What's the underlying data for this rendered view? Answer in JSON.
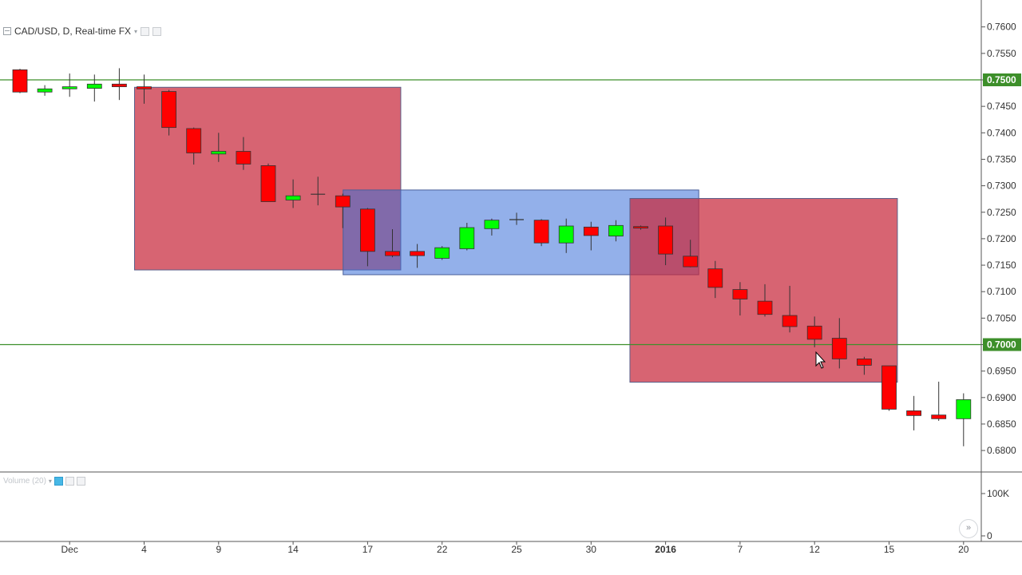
{
  "header": {
    "title": "CAD/USD, D, Real-time FX",
    "volume_label": "Volume (20)"
  },
  "colors": {
    "up": "#00ff00",
    "down": "#ff0000",
    "level_line": "#3d8f2a",
    "bearish_box": "#c8283c",
    "range_box": "#3a6fd8"
  },
  "chart_data": {
    "type": "candlestick",
    "title": "CAD/USD, D, Real-time FX",
    "ylim": [
      0.676,
      0.7625
    ],
    "y_ticks": [
      "0.7600",
      "0.7550",
      "0.7500",
      "0.7450",
      "0.7400",
      "0.7350",
      "0.7300",
      "0.7250",
      "0.7200",
      "0.7150",
      "0.7100",
      "0.7050",
      "0.7000",
      "0.6950",
      "0.6900",
      "0.6850",
      "0.6800"
    ],
    "x_ticks": [
      {
        "label": "Dec",
        "at": 2
      },
      {
        "label": "4",
        "at": 5
      },
      {
        "label": "9",
        "at": 8
      },
      {
        "label": "14",
        "at": 11
      },
      {
        "label": "17",
        "at": 14
      },
      {
        "label": "22",
        "at": 17
      },
      {
        "label": "25",
        "at": 20
      },
      {
        "label": "30",
        "at": 23
      },
      {
        "label": "2016",
        "at": 26,
        "bold": true
      },
      {
        "label": "7",
        "at": 29
      },
      {
        "label": "12",
        "at": 32
      },
      {
        "label": "15",
        "at": 35
      },
      {
        "label": "20",
        "at": 38
      }
    ],
    "candles": [
      {
        "o": 0.7519,
        "h": 0.7521,
        "l": 0.7475,
        "c": 0.7477
      },
      {
        "o": 0.7477,
        "h": 0.749,
        "l": 0.747,
        "c": 0.7483
      },
      {
        "o": 0.7483,
        "h": 0.7512,
        "l": 0.7468,
        "c": 0.7487
      },
      {
        "o": 0.7484,
        "h": 0.751,
        "l": 0.7459,
        "c": 0.7492
      },
      {
        "o": 0.7492,
        "h": 0.7522,
        "l": 0.7462,
        "c": 0.7487
      },
      {
        "o": 0.7487,
        "h": 0.751,
        "l": 0.7455,
        "c": 0.7483
      },
      {
        "o": 0.7478,
        "h": 0.7481,
        "l": 0.7395,
        "c": 0.741
      },
      {
        "o": 0.7408,
        "h": 0.741,
        "l": 0.734,
        "c": 0.7362
      },
      {
        "o": 0.736,
        "h": 0.74,
        "l": 0.7345,
        "c": 0.7365
      },
      {
        "o": 0.7365,
        "h": 0.7392,
        "l": 0.733,
        "c": 0.7341
      },
      {
        "o": 0.7338,
        "h": 0.7342,
        "l": 0.727,
        "c": 0.727
      },
      {
        "o": 0.7273,
        "h": 0.7312,
        "l": 0.7258,
        "c": 0.7281
      },
      {
        "o": 0.7282,
        "h": 0.7317,
        "l": 0.7263,
        "c": 0.7284
      },
      {
        "o": 0.7281,
        "h": 0.7285,
        "l": 0.722,
        "c": 0.726
      },
      {
        "o": 0.7256,
        "h": 0.7258,
        "l": 0.7148,
        "c": 0.7176
      },
      {
        "o": 0.7176,
        "h": 0.7218,
        "l": 0.7165,
        "c": 0.7168
      },
      {
        "o": 0.7176,
        "h": 0.719,
        "l": 0.7145,
        "c": 0.7168
      },
      {
        "o": 0.7163,
        "h": 0.7186,
        "l": 0.716,
        "c": 0.7183
      },
      {
        "o": 0.7181,
        "h": 0.723,
        "l": 0.7178,
        "c": 0.7221
      },
      {
        "o": 0.7219,
        "h": 0.7238,
        "l": 0.7206,
        "c": 0.7235
      },
      {
        "o": 0.7235,
        "h": 0.7249,
        "l": 0.7226,
        "c": 0.7236
      },
      {
        "o": 0.7235,
        "h": 0.7237,
        "l": 0.7186,
        "c": 0.7192
      },
      {
        "o": 0.7192,
        "h": 0.7238,
        "l": 0.7173,
        "c": 0.7224
      },
      {
        "o": 0.7222,
        "h": 0.7232,
        "l": 0.7178,
        "c": 0.7206
      },
      {
        "o": 0.7205,
        "h": 0.7235,
        "l": 0.7195,
        "c": 0.7225
      },
      {
        "o": 0.7223,
        "h": 0.7225,
        "l": 0.7217,
        "c": 0.722
      },
      {
        "o": 0.7224,
        "h": 0.724,
        "l": 0.715,
        "c": 0.7171
      },
      {
        "o": 0.7167,
        "h": 0.7198,
        "l": 0.7146,
        "c": 0.7147
      },
      {
        "o": 0.7143,
        "h": 0.7158,
        "l": 0.7088,
        "c": 0.7108
      },
      {
        "o": 0.7104,
        "h": 0.7118,
        "l": 0.7055,
        "c": 0.7086
      },
      {
        "o": 0.7082,
        "h": 0.7114,
        "l": 0.7053,
        "c": 0.7057
      },
      {
        "o": 0.7055,
        "h": 0.7111,
        "l": 0.7023,
        "c": 0.7034
      },
      {
        "o": 0.7035,
        "h": 0.7053,
        "l": 0.6995,
        "c": 0.701
      },
      {
        "o": 0.7012,
        "h": 0.705,
        "l": 0.6955,
        "c": 0.6973
      },
      {
        "o": 0.6973,
        "h": 0.6977,
        "l": 0.6943,
        "c": 0.6961
      },
      {
        "o": 0.696,
        "h": 0.696,
        "l": 0.6875,
        "c": 0.6878
      },
      {
        "o": 0.6875,
        "h": 0.6903,
        "l": 0.6838,
        "c": 0.6866
      },
      {
        "o": 0.6867,
        "h": 0.693,
        "l": 0.6856,
        "c": 0.686
      },
      {
        "o": 0.686,
        "h": 0.6908,
        "l": 0.6808,
        "c": 0.6896
      }
    ],
    "level_lines": [
      {
        "price": 0.75,
        "label": "0.7500"
      },
      {
        "price": 0.7,
        "label": "0.7000"
      }
    ],
    "boxes": [
      {
        "kind": "bearish",
        "from": 5,
        "to": 14.95,
        "top": 0.7486,
        "bottom": 0.7141
      },
      {
        "kind": "range",
        "from": 13.4,
        "to": 26.95,
        "top": 0.7292,
        "bottom": 0.7132
      },
      {
        "kind": "bearish",
        "from": 24.95,
        "to": 34.95,
        "top": 0.7276,
        "bottom": 0.6929
      }
    ],
    "volume": {
      "ticks": [
        "100K",
        "0"
      ]
    }
  }
}
